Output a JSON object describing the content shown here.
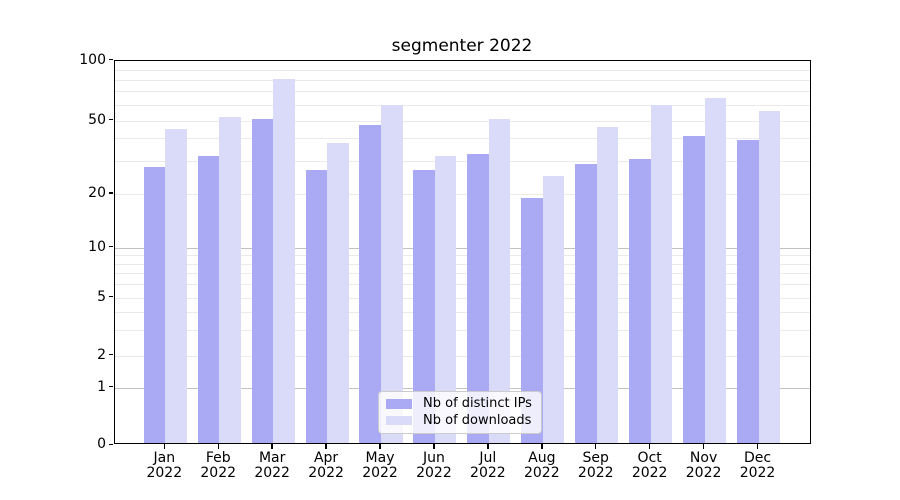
{
  "chart_data": {
    "type": "bar",
    "title": "segmenter 2022",
    "year": "2022",
    "categories": [
      "Jan",
      "Feb",
      "Mar",
      "Apr",
      "May",
      "Jun",
      "Jul",
      "Aug",
      "Sep",
      "Oct",
      "Nov",
      "Dec"
    ],
    "series": [
      {
        "name": "Nb of distinct IPs",
        "color": "#a9a9f4",
        "values": [
          28,
          32,
          51,
          27,
          47,
          27,
          33,
          19,
          29,
          31,
          41,
          39
        ]
      },
      {
        "name": "Nb of downloads",
        "color": "#dadaf9",
        "values": [
          45,
          52,
          81,
          38,
          60,
          32,
          51,
          25,
          46,
          60,
          65,
          56
        ]
      }
    ],
    "xlabel": "",
    "ylabel": "",
    "yticks": [
      0,
      1,
      2,
      5,
      10,
      20,
      50,
      100
    ],
    "major_gridline_values": [
      1,
      10
    ],
    "minor_gridline_values": [
      2,
      3,
      4,
      5,
      6,
      7,
      8,
      9,
      20,
      30,
      40,
      50,
      60,
      70,
      80,
      90
    ],
    "ylim": [
      0,
      100
    ],
    "yscale": "symlog-like (log above 1, linear 0-1)",
    "grid": "horizontal",
    "legend_position": "lower center inside axes",
    "axis_color": "#000000",
    "major_grid_color": "#c2c2c2",
    "minor_grid_color": "#eaeaea"
  }
}
